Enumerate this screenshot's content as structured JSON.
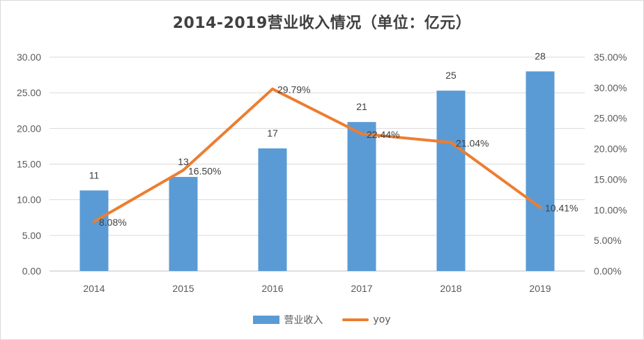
{
  "chart_data": {
    "type": "bar",
    "title": "2014-2019营业收入情况（单位：亿元）",
    "categories": [
      "2014",
      "2015",
      "2016",
      "2017",
      "2018",
      "2019"
    ],
    "series": [
      {
        "name": "营业收入",
        "type": "bar",
        "axis": "left",
        "color": "#5b9bd5",
        "values": [
          11.3,
          13.2,
          17.2,
          20.9,
          25.3,
          28.0
        ],
        "labels": [
          "11",
          "13",
          "17",
          "21",
          "25",
          "28"
        ]
      },
      {
        "name": "yoy",
        "type": "line",
        "axis": "right",
        "color": "#ed7d31",
        "values": [
          8.08,
          16.5,
          29.79,
          22.44,
          21.04,
          10.41
        ],
        "labels": [
          "8.08%",
          "16.50%",
          "29.79%",
          "22.44%",
          "21.04%",
          "10.41%"
        ]
      }
    ],
    "y_left": {
      "ylim": [
        0,
        30
      ],
      "ticks": [
        "0.00",
        "5.00",
        "10.00",
        "15.00",
        "20.00",
        "25.00",
        "30.00"
      ]
    },
    "y_right": {
      "ylim": [
        0,
        35
      ],
      "unit": "%",
      "ticks": [
        "0.00%",
        "5.00%",
        "10.00%",
        "15.00%",
        "20.00%",
        "25.00%",
        "30.00%",
        "35.00%"
      ]
    },
    "grid": true,
    "legend_position": "bottom"
  }
}
